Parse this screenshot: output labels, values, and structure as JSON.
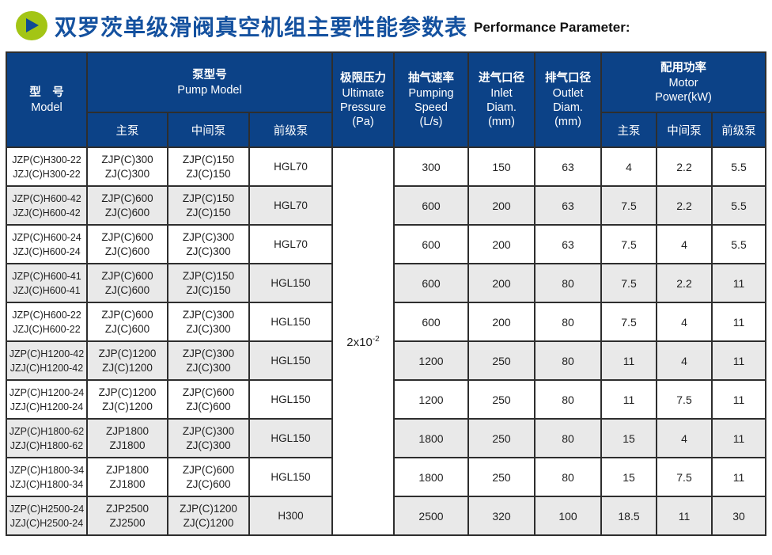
{
  "page": {
    "title_zh": "双罗茨单级滑阀真空机组主要性能参数表",
    "title_en": "Performance Parameter:",
    "accent_green": "#a3c515",
    "accent_blue": "#0c4287",
    "title_blue": "#14519f",
    "row_alt_gray": "#e9e9e9"
  },
  "table": {
    "header": {
      "model": {
        "zh": "型　号",
        "en": "Model"
      },
      "pump_model": {
        "zh": "泵型号",
        "en": "Pump Model"
      },
      "pump_sub": [
        "主泵",
        "中间泵",
        "前级泵"
      ],
      "ultimate_pressure": {
        "zh": "极限压力",
        "en_lines": [
          "Ultimate",
          "Pressure",
          "(Pa)"
        ]
      },
      "pumping_speed": {
        "zh": "抽气速率",
        "en_lines": [
          "Pumping",
          "Speed",
          "(L/s)"
        ]
      },
      "inlet": {
        "zh": "进气口径",
        "en_lines": [
          "Inlet",
          "Diam.",
          "(mm)"
        ]
      },
      "outlet": {
        "zh": "排气口径",
        "en_lines": [
          "Outlet",
          "Diam.",
          "(mm)"
        ]
      },
      "motor_power": {
        "zh": "配用功率",
        "en_lines": [
          "Motor",
          "Power(kW)"
        ]
      },
      "power_sub": [
        "主泵",
        "中间泵",
        "前级泵"
      ]
    },
    "ultimate_pressure_value": {
      "base": "2x10",
      "exponent": "-2"
    },
    "rows": [
      {
        "model": [
          "JZP(C)H300-22",
          "JZJ(C)H300-22"
        ],
        "main_pump": [
          "ZJP(C)300",
          "ZJ(C)300"
        ],
        "mid_pump": [
          "ZJP(C)150",
          "ZJ(C)150"
        ],
        "fore_pump": "HGL70",
        "speed": "300",
        "inlet": "150",
        "outlet": "63",
        "power_main": "4",
        "power_mid": "2.2",
        "power_fore": "5.5"
      },
      {
        "model": [
          "JZP(C)H600-42",
          "JZJ(C)H600-42"
        ],
        "main_pump": [
          "ZJP(C)600",
          "ZJ(C)600"
        ],
        "mid_pump": [
          "ZJP(C)150",
          "ZJ(C)150"
        ],
        "fore_pump": "HGL70",
        "speed": "600",
        "inlet": "200",
        "outlet": "63",
        "power_main": "7.5",
        "power_mid": "2.2",
        "power_fore": "5.5"
      },
      {
        "model": [
          "JZP(C)H600-24",
          "JZJ(C)H600-24"
        ],
        "main_pump": [
          "ZJP(C)600",
          "ZJ(C)600"
        ],
        "mid_pump": [
          "ZJP(C)300",
          "ZJ(C)300"
        ],
        "fore_pump": "HGL70",
        "speed": "600",
        "inlet": "200",
        "outlet": "63",
        "power_main": "7.5",
        "power_mid": "4",
        "power_fore": "5.5"
      },
      {
        "model": [
          "JZP(C)H600-41",
          "JZJ(C)H600-41"
        ],
        "main_pump": [
          "ZJP(C)600",
          "ZJ(C)600"
        ],
        "mid_pump": [
          "ZJP(C)150",
          "ZJ(C)150"
        ],
        "fore_pump": "HGL150",
        "speed": "600",
        "inlet": "200",
        "outlet": "80",
        "power_main": "7.5",
        "power_mid": "2.2",
        "power_fore": "11"
      },
      {
        "model": [
          "JZP(C)H600-22",
          "JZJ(C)H600-22"
        ],
        "main_pump": [
          "ZJP(C)600",
          "ZJ(C)600"
        ],
        "mid_pump": [
          "ZJP(C)300",
          "ZJ(C)300"
        ],
        "fore_pump": "HGL150",
        "speed": "600",
        "inlet": "200",
        "outlet": "80",
        "power_main": "7.5",
        "power_mid": "4",
        "power_fore": "11"
      },
      {
        "model": [
          "JZP(C)H1200-42",
          "JZJ(C)H1200-42"
        ],
        "main_pump": [
          "ZJP(C)1200",
          "ZJ(C)1200"
        ],
        "mid_pump": [
          "ZJP(C)300",
          "ZJ(C)300"
        ],
        "fore_pump": "HGL150",
        "speed": "1200",
        "inlet": "250",
        "outlet": "80",
        "power_main": "11",
        "power_mid": "4",
        "power_fore": "11"
      },
      {
        "model": [
          "JZP(C)H1200-24",
          "JZJ(C)H1200-24"
        ],
        "main_pump": [
          "ZJP(C)1200",
          "ZJ(C)1200"
        ],
        "mid_pump": [
          "ZJP(C)600",
          "ZJ(C)600"
        ],
        "fore_pump": "HGL150",
        "speed": "1200",
        "inlet": "250",
        "outlet": "80",
        "power_main": "11",
        "power_mid": "7.5",
        "power_fore": "11"
      },
      {
        "model": [
          "JZP(C)H1800-62",
          "JZJ(C)H1800-62"
        ],
        "main_pump": [
          "ZJP1800",
          "ZJ1800"
        ],
        "mid_pump": [
          "ZJP(C)300",
          "ZJ(C)300"
        ],
        "fore_pump": "HGL150",
        "speed": "1800",
        "inlet": "250",
        "outlet": "80",
        "power_main": "15",
        "power_mid": "4",
        "power_fore": "11"
      },
      {
        "model": [
          "JZP(C)H1800-34",
          "JZJ(C)H1800-34"
        ],
        "main_pump": [
          "ZJP1800",
          "ZJ1800"
        ],
        "mid_pump": [
          "ZJP(C)600",
          "ZJ(C)600"
        ],
        "fore_pump": "HGL150",
        "speed": "1800",
        "inlet": "250",
        "outlet": "80",
        "power_main": "15",
        "power_mid": "7.5",
        "power_fore": "11"
      },
      {
        "model": [
          "JZP(C)H2500-24",
          "JZJ(C)H2500-24"
        ],
        "main_pump": [
          "ZJP2500",
          "ZJ2500"
        ],
        "mid_pump": [
          "ZJP(C)1200",
          "ZJ(C)1200"
        ],
        "fore_pump": "H300",
        "speed": "2500",
        "inlet": "320",
        "outlet": "100",
        "power_main": "18.5",
        "power_mid": "11",
        "power_fore": "30"
      }
    ]
  }
}
